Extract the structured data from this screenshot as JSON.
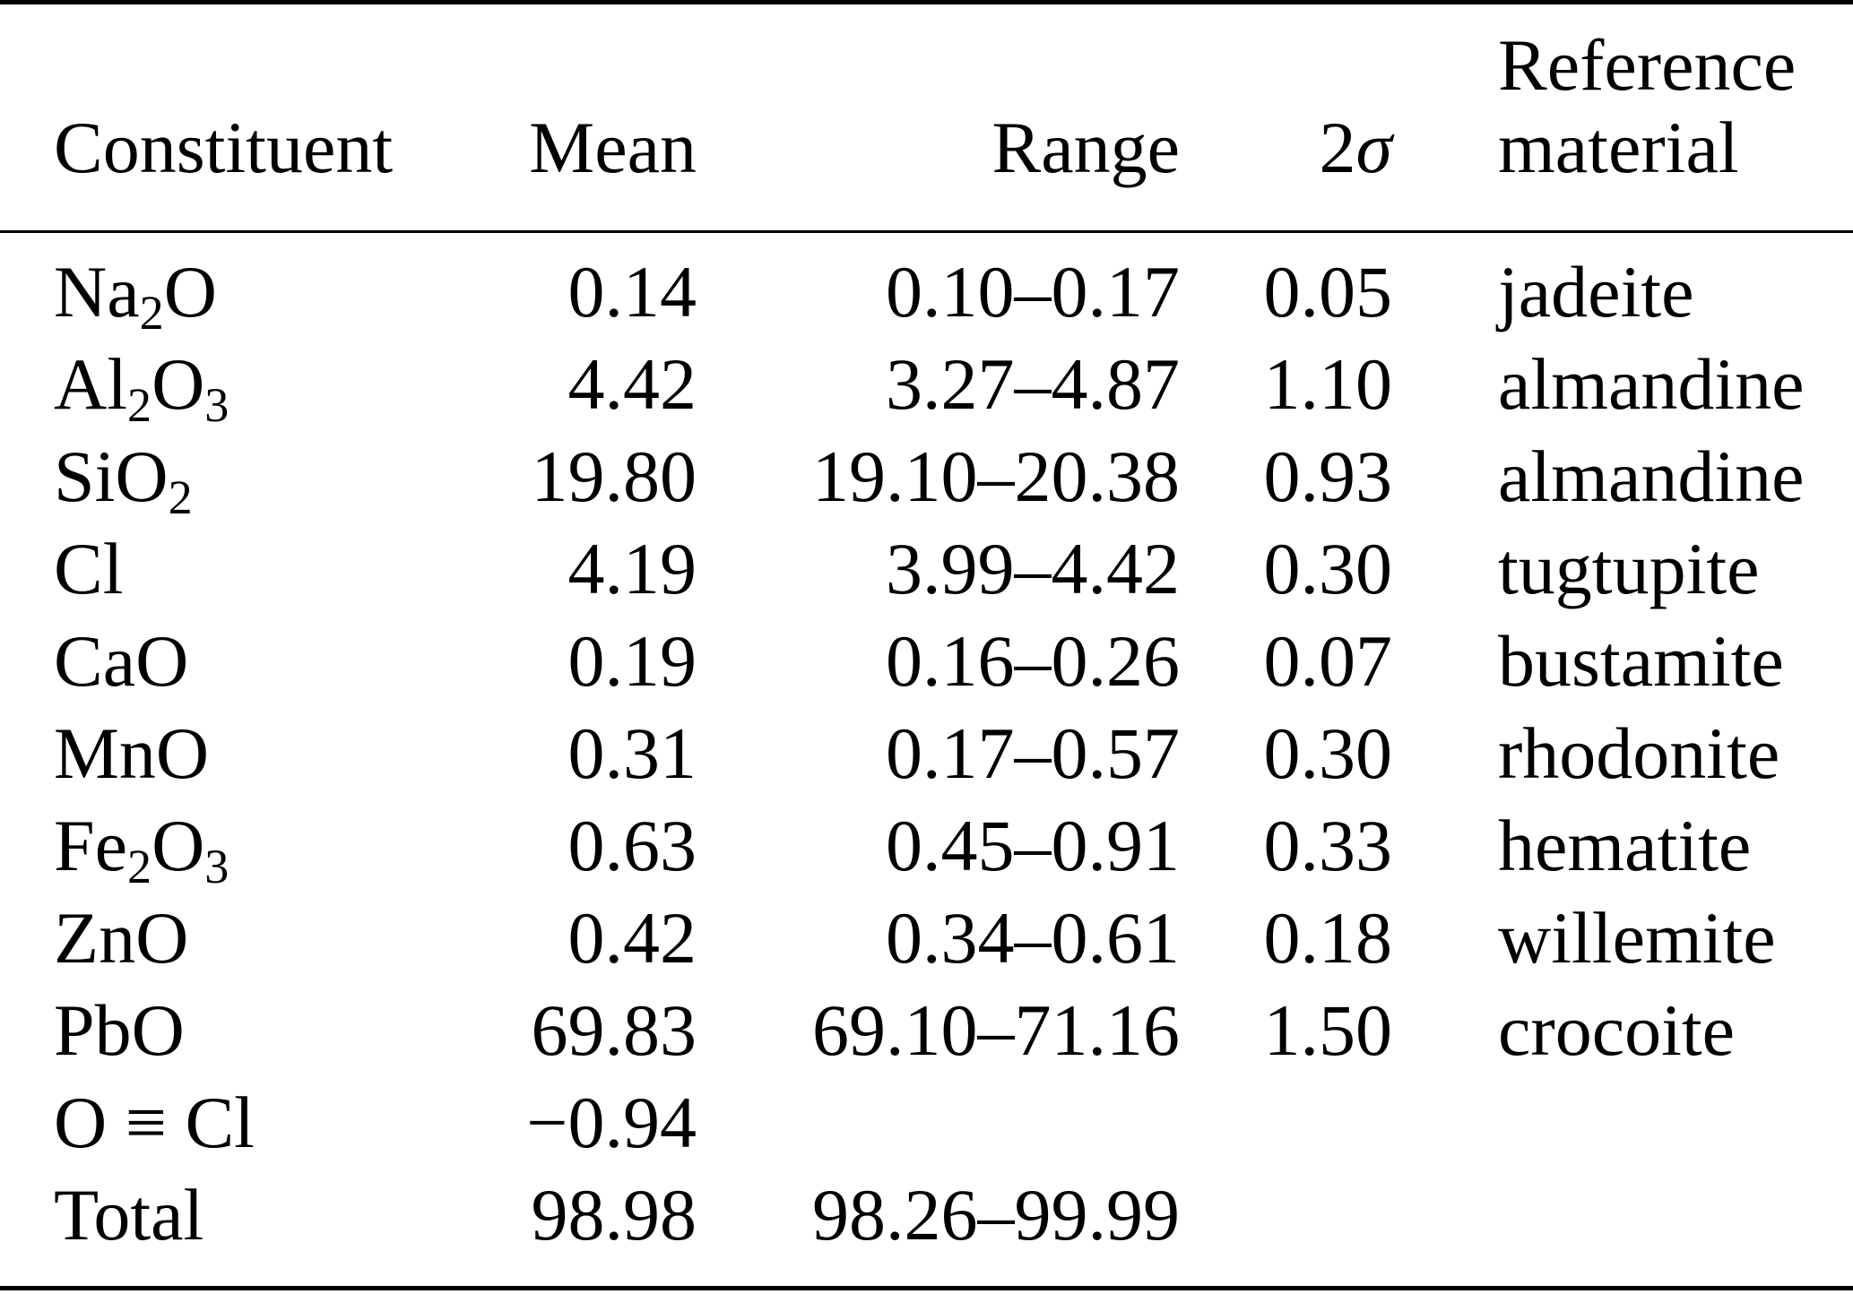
{
  "page": {
    "background_color": "#ffffff",
    "text_color": "#000000"
  },
  "table": {
    "header": {
      "constituent": "Constituent",
      "mean": "Mean",
      "range": "Range",
      "two_sigma_prefix": "2",
      "two_sigma_symbol": "σ",
      "reference_line1": "Reference",
      "reference_line2": "material"
    },
    "rows": [
      {
        "constituent": [
          [
            "t",
            "Na"
          ],
          [
            "sub",
            "2"
          ],
          [
            "t",
            "O"
          ]
        ],
        "mean": "0.14",
        "range": "0.10–0.17",
        "two_sigma": "0.05",
        "reference": "jadeite"
      },
      {
        "constituent": [
          [
            "t",
            "Al"
          ],
          [
            "sub",
            "2"
          ],
          [
            "t",
            "O"
          ],
          [
            "sub",
            "3"
          ]
        ],
        "mean": "4.42",
        "range": "3.27–4.87",
        "two_sigma": "1.10",
        "reference": "almandine"
      },
      {
        "constituent": [
          [
            "t",
            "SiO"
          ],
          [
            "sub",
            "2"
          ]
        ],
        "mean": "19.80",
        "range": "19.10–20.38",
        "two_sigma": "0.93",
        "reference": "almandine"
      },
      {
        "constituent": [
          [
            "t",
            "Cl"
          ]
        ],
        "mean": "4.19",
        "range": "3.99–4.42",
        "two_sigma": "0.30",
        "reference": "tugtupite"
      },
      {
        "constituent": [
          [
            "t",
            "CaO"
          ]
        ],
        "mean": "0.19",
        "range": "0.16–0.26",
        "two_sigma": "0.07",
        "reference": "bustamite"
      },
      {
        "constituent": [
          [
            "t",
            "MnO"
          ]
        ],
        "mean": "0.31",
        "range": "0.17–0.57",
        "two_sigma": "0.30",
        "reference": "rhodonite"
      },
      {
        "constituent": [
          [
            "t",
            "Fe"
          ],
          [
            "sub",
            "2"
          ],
          [
            "t",
            "O"
          ],
          [
            "sub",
            "3"
          ]
        ],
        "mean": "0.63",
        "range": "0.45–0.91",
        "two_sigma": "0.33",
        "reference": "hematite"
      },
      {
        "constituent": [
          [
            "t",
            "ZnO"
          ]
        ],
        "mean": "0.42",
        "range": "0.34–0.61",
        "two_sigma": "0.18",
        "reference": "willemite"
      },
      {
        "constituent": [
          [
            "t",
            "PbO"
          ]
        ],
        "mean": "69.83",
        "range": "69.10–71.16",
        "two_sigma": "1.50",
        "reference": "crocoite"
      },
      {
        "constituent": [
          [
            "t",
            "O ≡ Cl"
          ]
        ],
        "mean": "−0.94",
        "range": "",
        "two_sigma": "",
        "reference": ""
      },
      {
        "constituent": [
          [
            "t",
            "Total"
          ]
        ],
        "mean": "98.98",
        "range": "98.26–99.99",
        "two_sigma": "",
        "reference": ""
      }
    ]
  }
}
